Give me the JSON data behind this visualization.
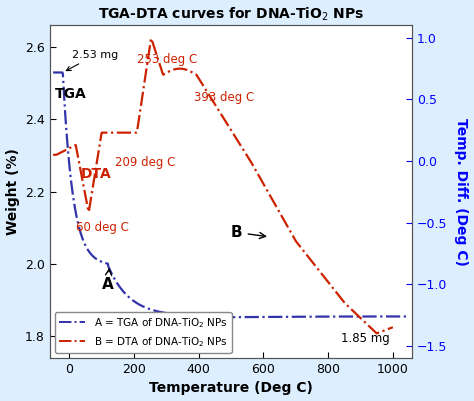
{
  "title": "TGA-DTA curves for DNA-TiO$_2$ NPs",
  "xlabel": "Temperature (Deg C)",
  "ylabel_left": "Weight (%)",
  "ylabel_right": "Temp. Diff. (Deg C)",
  "xlim": [
    -60,
    1060
  ],
  "ylim_left": [
    1.74,
    2.66
  ],
  "ylim_right": [
    -1.6,
    1.1
  ],
  "yticks_left": [
    1.8,
    2.0,
    2.2,
    2.4,
    2.6
  ],
  "yticks_right": [
    -1.5,
    -1.0,
    -0.5,
    0.0,
    0.5,
    1.0
  ],
  "xticks": [
    0,
    200,
    400,
    600,
    800,
    1000
  ],
  "tga_color": "#3333AA",
  "dta_color": "#CC2200",
  "fig_bg": "#DDEEFF",
  "plot_bg": "#FFFFFF",
  "legend_tga": "A = TGA of DNA-TiO$_2$ NPs",
  "legend_dta": "B = DTA of DNA-TiO$_2$ NPs"
}
